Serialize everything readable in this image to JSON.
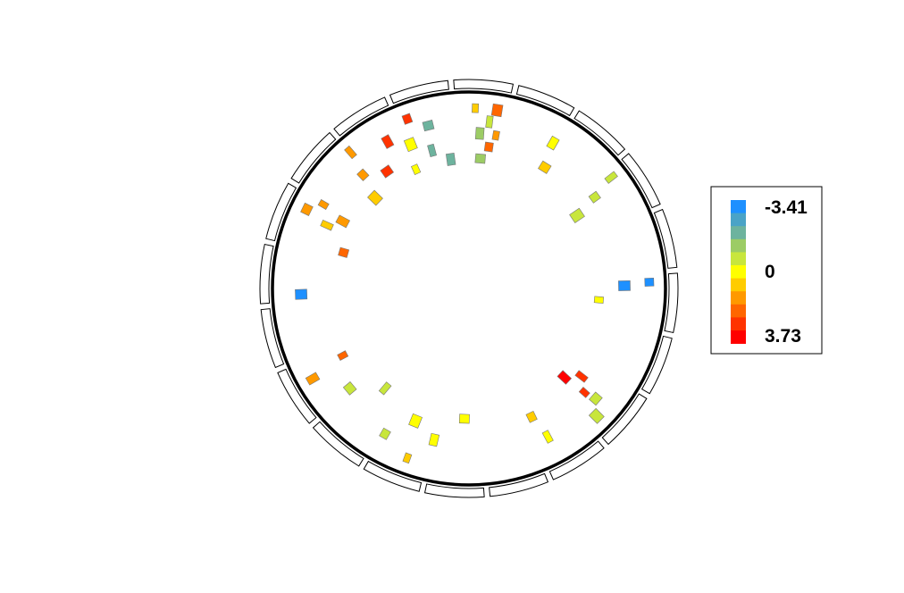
{
  "legend": {
    "min_label": "-3.41",
    "mid_label": "0",
    "max_label": "3.73",
    "color_steps": [
      "#1E90FF",
      "#4AA3C7",
      "#6DB39E",
      "#9CCC65",
      "#C8E63C",
      "#FFFF00",
      "#FFCC00",
      "#FF9900",
      "#FF6600",
      "#FF3300",
      "#FF0000"
    ]
  },
  "chart_data": {
    "type": "circos",
    "value_range": [
      -3.41,
      3.73
    ],
    "segment_count": 20,
    "marks": [
      {
        "angle": -88,
        "value": 1.2
      },
      {
        "angle": -86,
        "value": -1.3
      },
      {
        "angle": -85,
        "value": -1.0
      },
      {
        "angle": -83,
        "value": -0.8
      },
      {
        "angle": -82,
        "value": 2.5
      },
      {
        "angle": -81,
        "value": 2.0
      },
      {
        "angle": -80,
        "value": 1.6
      },
      {
        "angle": -98,
        "value": -2.2
      },
      {
        "angle": -104,
        "value": -1.9
      },
      {
        "angle": -105,
        "value": -1.9
      },
      {
        "angle": -110,
        "value": 2.9
      },
      {
        "angle": -112,
        "value": 0.5
      },
      {
        "angle": -114,
        "value": 0.4
      },
      {
        "angle": -119,
        "value": 3.0
      },
      {
        "angle": -125,
        "value": 3.1
      },
      {
        "angle": -131,
        "value": 1.5
      },
      {
        "angle": -133,
        "value": 1.7
      },
      {
        "angle": -136,
        "value": 0.9
      },
      {
        "angle": -150,
        "value": 1.8
      },
      {
        "angle": -152,
        "value": 1.3
      },
      {
        "angle": -154,
        "value": 1.9
      },
      {
        "angle": -156,
        "value": 0.8
      },
      {
        "angle": -164,
        "value": 2.6
      },
      {
        "angle": 178,
        "value": -3.3
      },
      {
        "angle": 152,
        "value": 2.3
      },
      {
        "angle": 150,
        "value": 1.4
      },
      {
        "angle": 140,
        "value": -0.4
      },
      {
        "angle": 130,
        "value": -0.2
      },
      {
        "angle": 120,
        "value": -0.6
      },
      {
        "angle": 112,
        "value": 0.3
      },
      {
        "angle": 110,
        "value": 0.8
      },
      {
        "angle": 103,
        "value": 0.1
      },
      {
        "angle": 92,
        "value": 0.0
      },
      {
        "angle": 62,
        "value": 0.1
      },
      {
        "angle": 64,
        "value": 0.7
      },
      {
        "angle": 45,
        "value": -0.9
      },
      {
        "angle": 42,
        "value": 3.2
      },
      {
        "angle": 43,
        "value": 3.4
      },
      {
        "angle": 41,
        "value": -0.7
      },
      {
        "angle": 38,
        "value": 3.3
      },
      {
        "angle": -2,
        "value": -3.4
      },
      {
        "angle": -1,
        "value": -3.2
      },
      {
        "angle": 5,
        "value": 0.3
      },
      {
        "angle": -60,
        "value": 0.2
      },
      {
        "angle": -58,
        "value": 0.6
      },
      {
        "angle": -38,
        "value": -0.6
      },
      {
        "angle": -36,
        "value": -0.3
      },
      {
        "angle": -34,
        "value": -0.7
      }
    ]
  }
}
